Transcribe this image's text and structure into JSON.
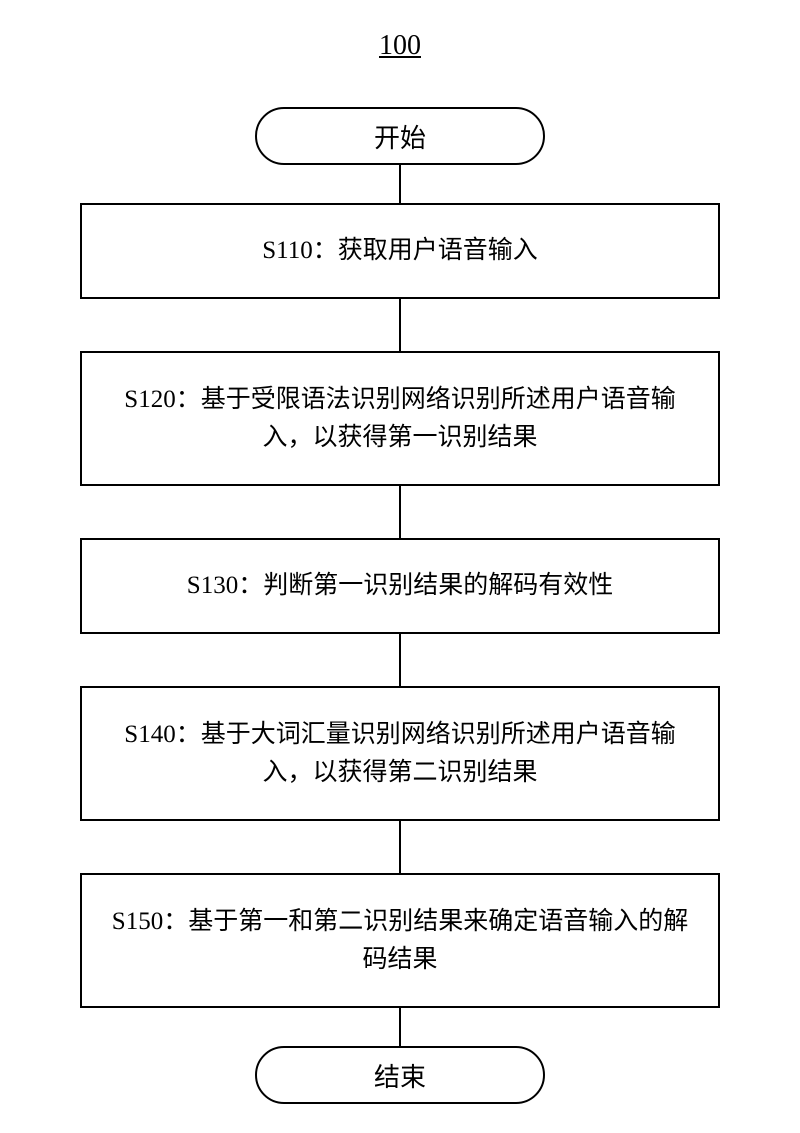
{
  "figure_number": "100",
  "flowchart": {
    "type": "flowchart",
    "nodes": [
      {
        "id": "start",
        "type": "terminal",
        "label": "开始"
      },
      {
        "id": "s110",
        "type": "process",
        "size": "small",
        "label": "S110：获取用户语音输入"
      },
      {
        "id": "s120",
        "type": "process",
        "size": "large",
        "label": "S120：基于受限语法识别网络识别所述用户语音输入，以获得第一识别结果"
      },
      {
        "id": "s130",
        "type": "process",
        "size": "small",
        "label": "S130：判断第一识别结果的解码有效性"
      },
      {
        "id": "s140",
        "type": "process",
        "size": "large",
        "label": "S140：基于大词汇量识别网络识别所述用户语音输入，以获得第二识别结果"
      },
      {
        "id": "s150",
        "type": "process",
        "size": "large",
        "label": "S150：基于第一和第二识别结果来确定语音输入的解码结果"
      },
      {
        "id": "end",
        "type": "terminal",
        "label": "结束"
      }
    ],
    "border_color": "#000000",
    "background_color": "#ffffff",
    "text_color": "#000000",
    "font_size": 25,
    "terminal_width": 290,
    "terminal_height": 58,
    "process_width": 640,
    "connector_color": "#000000",
    "connector_width": 2
  }
}
